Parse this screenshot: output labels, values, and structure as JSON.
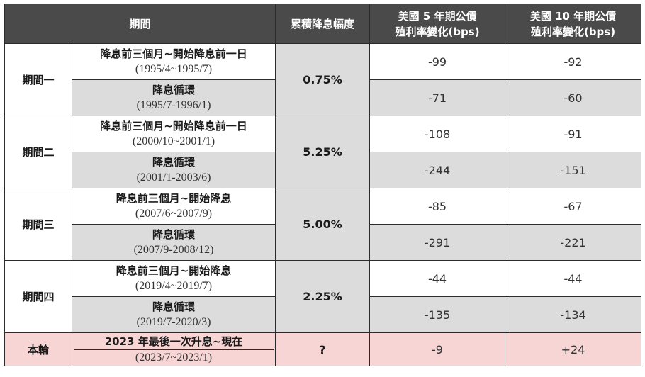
{
  "header": {
    "period": "期間",
    "cumulative_cut": "累積降息幅度",
    "us5y_line1": "美國 5 年期公債",
    "us5y_line2": "殖利率變化(bps)",
    "us10y_line1": "美國 10 年期公債",
    "us10y_line2": "殖利率變化(bps)"
  },
  "groups": [
    {
      "name": "期間一",
      "cut": "0.75%",
      "rows": [
        {
          "label": "降息前三個月~開始降息前一日",
          "range": "(1995/4~1995/7)",
          "y5": "-99",
          "y10": "-92"
        },
        {
          "label": "降息循環",
          "range": "(1995/7-1996/1)",
          "y5": "-71",
          "y10": "-60"
        }
      ]
    },
    {
      "name": "期間二",
      "cut": "5.25%",
      "rows": [
        {
          "label": "降息前三個月~開始降息前一日",
          "range": "(2000/10~2001/1)",
          "y5": "-108",
          "y10": "-91"
        },
        {
          "label": "降息循環",
          "range": "(2001/1-2003/6)",
          "y5": "-244",
          "y10": "-151"
        }
      ]
    },
    {
      "name": "期間三",
      "cut": "5.00%",
      "rows": [
        {
          "label": "降息前三個月~開始降息",
          "range": "(2007/6~2007/9)",
          "y5": "-85",
          "y10": "-67"
        },
        {
          "label": "降息循環",
          "range": "(2007/9-2008/12)",
          "y5": "-291",
          "y10": "-221"
        }
      ]
    },
    {
      "name": "期間四",
      "cut": "2.25%",
      "rows": [
        {
          "label": "降息前三個月~開始降息",
          "range": "(2019/4~2019/7)",
          "y5": "-44",
          "y10": "-44"
        },
        {
          "label": "降息循環",
          "range": "(2019/7-2020/3)",
          "y5": "-135",
          "y10": "-134"
        }
      ]
    }
  ],
  "current": {
    "name": "本輪",
    "label": "2023 年最後一次升息~現在",
    "range": "(2023/7~2023/1)",
    "cut": "?",
    "y5": "-9",
    "y10": "+24"
  },
  "colors": {
    "header_bg": "#4a4a4a",
    "gray_cell": "#dcdcdc",
    "current_row": "#f8d5d5"
  }
}
